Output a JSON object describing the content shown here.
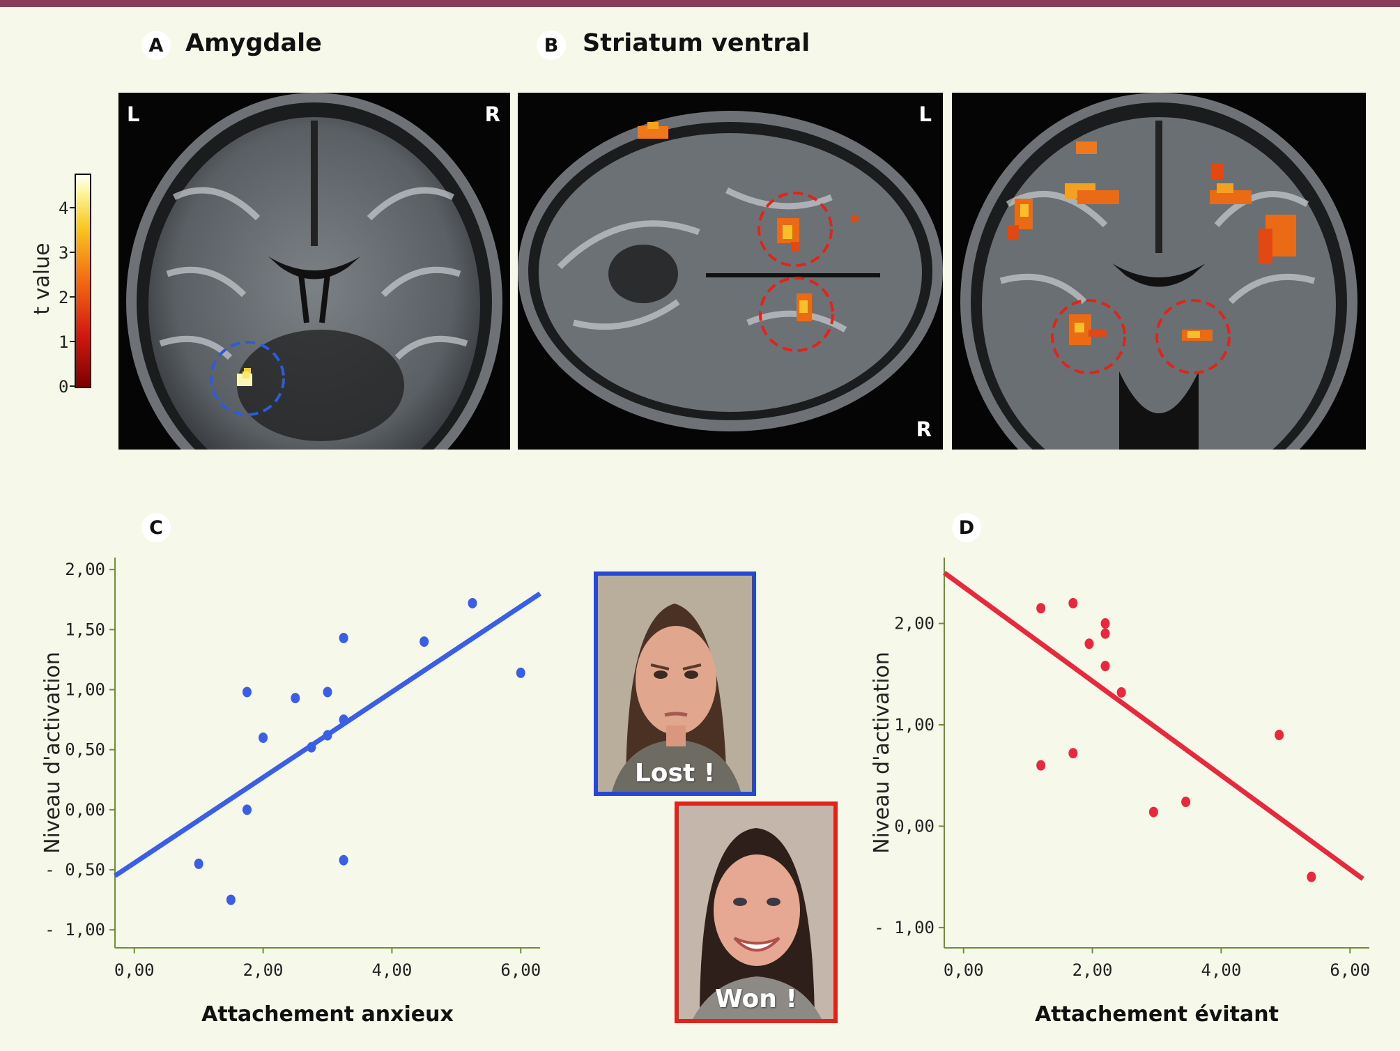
{
  "panels": {
    "a": {
      "letter": "A",
      "title": "Amygdale"
    },
    "b": {
      "letter": "B",
      "title": "Striatum ventral"
    },
    "c": {
      "letter": "C"
    },
    "d": {
      "letter": "D"
    }
  },
  "scans": {
    "coronal_a": {
      "left": "L",
      "right": "R"
    },
    "axial_b": {
      "top": "L",
      "bottom": "R"
    }
  },
  "colorbar": {
    "label": "t value",
    "ticks": [
      "0",
      "1",
      "2",
      "3",
      "4"
    ]
  },
  "faces": {
    "lost": {
      "caption": "Lost !",
      "frame_color": "#2747d6"
    },
    "won": {
      "caption": "Won !",
      "frame_color": "#e2231a"
    }
  },
  "colors": {
    "blue_series": "#3b5ee6",
    "red_series": "#e8283c",
    "axis": "#6f8f35"
  },
  "chart_data": [
    {
      "type": "scatter",
      "id": "c",
      "xlabel": "Attachement anxieux",
      "ylabel": "Niveau d'activation",
      "xlim": [
        -0.3,
        6.3
      ],
      "ylim": [
        -1.15,
        2.1
      ],
      "xticks": [
        0,
        2,
        4,
        6
      ],
      "xtick_labels": [
        "0,00",
        "2,00",
        "4,00",
        "6,00"
      ],
      "yticks": [
        -1,
        -0.5,
        0,
        0.5,
        1,
        1.5,
        2
      ],
      "ytick_labels": [
        "- 1,00",
        "- 0,50",
        "0,00",
        "0,50",
        "1,00",
        "1,50",
        "2,00"
      ],
      "color": "#3b5ee6",
      "points": [
        {
          "x": 1.0,
          "y": -0.45
        },
        {
          "x": 1.5,
          "y": -0.75
        },
        {
          "x": 1.75,
          "y": 0.98
        },
        {
          "x": 1.75,
          "y": 0.0
        },
        {
          "x": 2.0,
          "y": 0.6
        },
        {
          "x": 2.5,
          "y": 0.93
        },
        {
          "x": 2.75,
          "y": 0.52
        },
        {
          "x": 3.0,
          "y": 0.98
        },
        {
          "x": 3.0,
          "y": 0.62
        },
        {
          "x": 3.25,
          "y": 1.43
        },
        {
          "x": 3.25,
          "y": 0.75
        },
        {
          "x": 3.25,
          "y": -0.42
        },
        {
          "x": 4.5,
          "y": 1.4
        },
        {
          "x": 5.25,
          "y": 1.72
        },
        {
          "x": 6.0,
          "y": 1.14
        }
      ],
      "fit_line": {
        "x": [
          -0.3,
          6.3
        ],
        "y": [
          -0.55,
          1.8
        ]
      }
    },
    {
      "type": "scatter",
      "id": "d",
      "xlabel": "Attachement évitant",
      "ylabel": "Niveau d'activation",
      "xlim": [
        -0.3,
        6.3
      ],
      "ylim": [
        -1.2,
        2.65
      ],
      "xticks": [
        0,
        2,
        4,
        6
      ],
      "xtick_labels": [
        "0,00",
        "2,00",
        "4,00",
        "6,00"
      ],
      "yticks": [
        -1,
        0,
        1,
        2
      ],
      "ytick_labels": [
        "- 1,00",
        "0,00",
        "1,00",
        "2,00"
      ],
      "color": "#e8283c",
      "points": [
        {
          "x": 1.2,
          "y": 2.15
        },
        {
          "x": 1.7,
          "y": 2.2
        },
        {
          "x": 2.2,
          "y": 2.0
        },
        {
          "x": 2.2,
          "y": 1.9
        },
        {
          "x": 1.95,
          "y": 1.8
        },
        {
          "x": 2.2,
          "y": 1.58
        },
        {
          "x": 2.45,
          "y": 1.32
        },
        {
          "x": 1.2,
          "y": 0.6
        },
        {
          "x": 1.7,
          "y": 0.72
        },
        {
          "x": 2.95,
          "y": 0.14
        },
        {
          "x": 3.45,
          "y": 0.24
        },
        {
          "x": 4.9,
          "y": 0.9
        },
        {
          "x": 5.4,
          "y": -0.5
        }
      ],
      "fit_line": {
        "x": [
          -0.3,
          6.2
        ],
        "y": [
          2.5,
          -0.52
        ]
      }
    }
  ]
}
